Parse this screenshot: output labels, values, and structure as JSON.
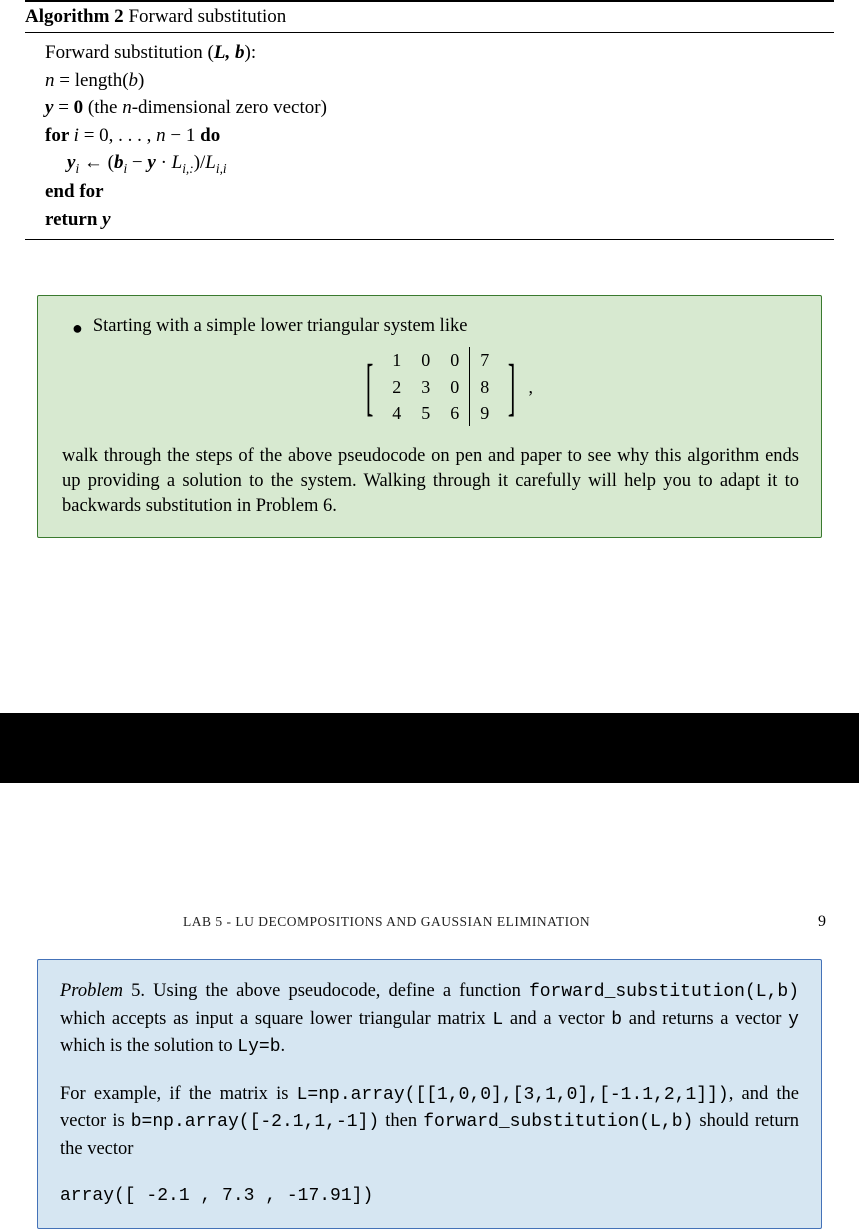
{
  "algorithm": {
    "label": "Algorithm 2",
    "title": "Forward substitution",
    "lines": {
      "l1_pre": "Forward substitution (",
      "l1_args": "L, b",
      "l1_post": "):",
      "l2": "n = length(b)",
      "l3_pre": "y",
      "l3_eq": " = ",
      "l3_zero": "0",
      "l3_post": " (the ",
      "l3_n": "n",
      "l3_post2": "-dimensional zero vector)",
      "l4_for": "for ",
      "l4_i": "i",
      "l4_body": " = 0, . . . , n − 1 ",
      "l4_do": "do",
      "l5_yi": "y",
      "l5_isub": "i",
      "l5_arrow": " ← (",
      "l5_bi": "b",
      "l5_minus": " − ",
      "l5_y": "y",
      "l5_dot": " · ",
      "l5_L": "L",
      "l5_sub1": "i,:",
      "l5_close": ")/",
      "l5_L2": "L",
      "l5_sub2": "i,i",
      "l6": "end for",
      "l7_ret": "return  ",
      "l7_y": "y"
    }
  },
  "greenbox": {
    "intro": "Starting with a simple lower triangular system like",
    "matrix": {
      "rows": [
        [
          "1",
          "0",
          "0",
          "7"
        ],
        [
          "2",
          "3",
          "0",
          "8"
        ],
        [
          "4",
          "5",
          "6",
          "9"
        ]
      ]
    },
    "continuation": "walk through the steps of the above pseudocode on pen and paper to see why this algorithm ends up providing a solution to the system. Walking through it carefully will help you to adapt it to backwards substitution in Problem 6."
  },
  "colors": {
    "green_bg": "#d7e9d0",
    "green_border": "#3a7a2f",
    "blue_bg": "#d6e6f2",
    "blue_border": "#4472b8",
    "black": "#000000",
    "white": "#ffffff"
  },
  "header": {
    "title": "LAB 5 - LU DECOMPOSITIONS AND GAUSSIAN ELIMINATION",
    "page_number": "9"
  },
  "bluebox": {
    "problem_label": "Problem",
    "problem_num": " 5. ",
    "p1_a": "Using the above pseudocode, define a function ",
    "p1_code1": "forward_substitution(L,b)",
    "p1_b": " which accepts as input a square lower triangular matrix ",
    "p1_code2": "L",
    "p1_c": " and a vector ",
    "p1_code3": "b",
    "p1_d": " and returns a vector ",
    "p1_code4": "y",
    "p1_e": " which is the solution to ",
    "p1_code5": "Ly=b",
    "p1_f": ".",
    "p2_a": "For example, if the matrix is ",
    "p2_code1": "L=np.array([[1,0,0],[3,1,0],[-1.1,2,1]])",
    "p2_b": ", and the vector is ",
    "p2_code2": "b=np.array([-2.1,1,-1])",
    "p2_c": " then ",
    "p2_code3": "forward_substitution(L,b)",
    "p2_d": " should return the vector",
    "p3": "array([ -2.1 ,  7.3 , -17.91])"
  }
}
